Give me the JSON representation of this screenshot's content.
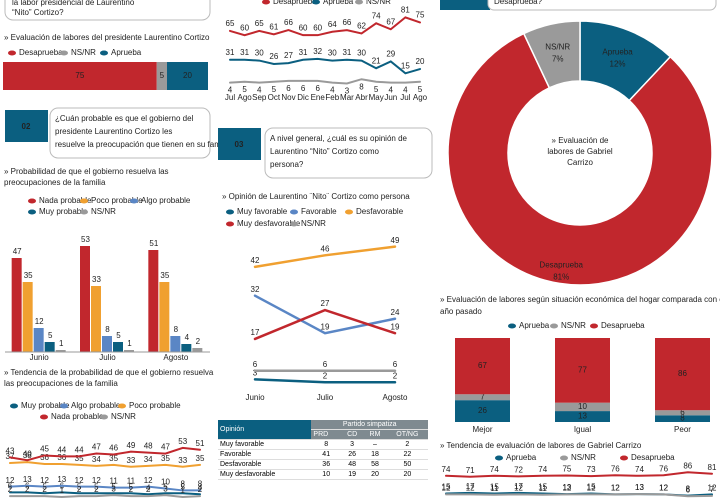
{
  "headers": {
    "top_left": [
      "la labor presidencial de Laurentino",
      "“Nito” Cortizo?"
    ],
    "top_right": "Desaprueba?"
  },
  "sections": [
    {
      "number": "02",
      "question": [
        "¿Cuán probable es que el gobierno del",
        "presidente Laurentino Cortizo les",
        "resuelve la preocupación que tienen en su familia?"
      ]
    },
    {
      "number": "03",
      "question": [
        "A nivel general, ¿cuál es su opinión de",
        "Laurentino “Nito” Cortizo como",
        "persona?"
      ]
    }
  ],
  "chart_data": [
    {
      "type": "stacked-hbar",
      "title": "» Evaluación de labores del presidente Laurentino Cortizo",
      "xlim": [
        0,
        100
      ],
      "series": [
        {
          "name": "Desaprueba",
          "color": "#c1272d",
          "values": [
            75
          ]
        },
        {
          "name": "NS/NR",
          "color": "#9a9a9a",
          "values": [
            5
          ]
        },
        {
          "name": "Aprueba",
          "color": "#0b5f80",
          "values": [
            20
          ]
        }
      ]
    },
    {
      "type": "line",
      "categories": [
        "Jul",
        "Ago",
        "Sep",
        "Oct",
        "Nov",
        "Dic",
        "Ene",
        "Feb",
        "Mar",
        "Abr",
        "May",
        "Jun",
        "Jul",
        "Ago"
      ],
      "ylim": [
        0,
        85
      ],
      "series": [
        {
          "name": "Desaprueba",
          "color": "#c1272d",
          "values": [
            65,
            60,
            65,
            61,
            66,
            60,
            60,
            64,
            66,
            62,
            74,
            67,
            81,
            75
          ]
        },
        {
          "name": "Aprueba",
          "color": "#0b5f80",
          "values": [
            31,
            31,
            30,
            26,
            27,
            31,
            32,
            30,
            31,
            30,
            21,
            29,
            15,
            20
          ]
        },
        {
          "name": "NS/NR",
          "color": "#9a9a9a",
          "values": [
            4,
            5,
            4,
            5,
            6,
            6,
            6,
            4,
            3,
            8,
            5,
            4,
            4,
            5
          ]
        }
      ]
    },
    {
      "type": "donut",
      "title": [
        "» Evaluación de",
        "labores de Gabriel",
        "Carrizo"
      ],
      "categories": [
        "Aprueba",
        "Desaprueba",
        "NS/NR"
      ],
      "values": [
        12,
        81,
        7
      ],
      "value_labels": [
        "12%",
        "81%",
        "7%"
      ],
      "colors": [
        "#0b5f80",
        "#c1272d",
        "#9a9a9a"
      ]
    },
    {
      "type": "grouped-bar",
      "title": [
        "» Probabilidad de que el gobierno resuelva las",
        "preocupaciones de la familia"
      ],
      "categories": [
        "Junio",
        "Julio",
        "Agosto"
      ],
      "ylim": [
        0,
        60
      ],
      "series": [
        {
          "name": "Nada probable",
          "color": "#c1272d",
          "values": [
            47,
            53,
            51
          ]
        },
        {
          "name": "Poco probable",
          "color": "#f0a030",
          "values": [
            35,
            33,
            35
          ]
        },
        {
          "name": "Algo probable",
          "color": "#5a86c5",
          "values": [
            12,
            8,
            8
          ]
        },
        {
          "name": "Muy probable",
          "color": "#0b5f80",
          "values": [
            5,
            5,
            4
          ]
        },
        {
          "name": "NS/NR",
          "color": "#9a9a9a",
          "values": [
            1,
            1,
            2
          ]
        }
      ]
    },
    {
      "type": "line",
      "title": [
        "» Tendencia de la probabilidad de que el gobierno resuelva",
        "las preocupaciones de la familia"
      ],
      "ylim": [
        0,
        55
      ],
      "series": [
        {
          "name": "Muy probable",
          "color": "#0b5f80",
          "values": [
            6,
            6,
            5,
            6,
            5,
            5,
            5,
            5,
            4,
            5,
            5,
            4
          ]
        },
        {
          "name": "Algo probable",
          "color": "#5a86c5",
          "values": [
            12,
            13,
            12,
            13,
            12,
            12,
            11,
            11,
            12,
            10,
            8,
            8
          ]
        },
        {
          "name": "Poco probable",
          "color": "#f0a030",
          "values": [
            37,
            38,
            36,
            36,
            35,
            34,
            35,
            33,
            34,
            35,
            33,
            35
          ]
        },
        {
          "name": "Nada probable",
          "color": "#c1272d",
          "values": [
            43,
            40,
            45,
            44,
            44,
            47,
            46,
            49,
            48,
            47,
            53,
            51
          ]
        },
        {
          "name": "NS/NR",
          "color": "#9a9a9a",
          "values": [
            2,
            2,
            2,
            1,
            2,
            2,
            3,
            2,
            2,
            3,
            1,
            2
          ]
        }
      ]
    },
    {
      "type": "line",
      "title": "» Opinión de Laurentino ¨Nito¨ Cortizo como persona",
      "categories": [
        "Junio",
        "Julio",
        "Agosto"
      ],
      "ylim": [
        0,
        52
      ],
      "series": [
        {
          "name": "Muy favorable",
          "color": "#0b5f80",
          "values": [
            3,
            2,
            2
          ]
        },
        {
          "name": "Favorable",
          "color": "#5a86c5",
          "values": [
            32,
            19,
            24
          ]
        },
        {
          "name": "Desfavorable",
          "color": "#f0a030",
          "values": [
            42,
            46,
            49
          ]
        },
        {
          "name": "Muy desfavorable",
          "color": "#c1272d",
          "values": [
            17,
            27,
            19
          ]
        },
        {
          "name": "NS/NR",
          "color": "#9a9a9a",
          "values": [
            6,
            6,
            6
          ]
        }
      ]
    },
    {
      "type": "stacked-bar",
      "title": [
        "» Evaluación de labores según situación económica del hogar comparada con el",
        "año pasado"
      ],
      "categories": [
        "Mejor",
        "Igual",
        "Peor"
      ],
      "ylim": [
        0,
        100
      ],
      "series": [
        {
          "name": "Aprueba",
          "color": "#0b5f80",
          "values": [
            26,
            13,
            8
          ]
        },
        {
          "name": "NS/NR",
          "color": "#9a9a9a",
          "values": [
            7,
            10,
            6
          ]
        },
        {
          "name": "Desaprueba",
          "color": "#c1272d",
          "values": [
            67,
            77,
            86
          ]
        }
      ]
    },
    {
      "type": "line",
      "title": "» Tendencia de evaluación de labores de Gabriel Carrizo",
      "ylim": [
        0,
        100
      ],
      "series": [
        {
          "name": "Aprueba",
          "color": "#0b5f80",
          "values": [
            15,
            17,
            15,
            17,
            15,
            13,
            15,
            12,
            13,
            12,
            8,
            12
          ]
        },
        {
          "name": "NS/NR",
          "color": "#9a9a9a",
          "values": [
            12,
            12,
            11,
            12,
            11,
            12,
            12,
            12,
            13,
            12,
            6,
            7
          ]
        },
        {
          "name": "Desaprueba",
          "color": "#c1272d",
          "values": [
            74,
            71,
            74,
            72,
            74,
            75,
            73,
            76,
            74,
            76,
            86,
            81
          ]
        }
      ]
    }
  ],
  "table": {
    "header": "Opinión",
    "group": "Partido simpatiza",
    "columns": [
      "PRD",
      "CD",
      "RM",
      "OT/NG"
    ],
    "rows": [
      [
        "Muy favorable",
        8,
        3,
        "–",
        2
      ],
      [
        "Favorable",
        41,
        26,
        18,
        22
      ],
      [
        "Desfavorable",
        36,
        48,
        58,
        50
      ],
      [
        "Muy desfavorable",
        10,
        19,
        20,
        20
      ]
    ]
  }
}
